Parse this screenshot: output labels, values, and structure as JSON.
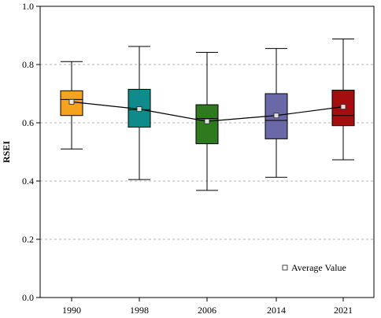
{
  "chart_data": {
    "type": "box",
    "title": "",
    "xlabel": "",
    "ylabel": "RSEI",
    "ylim": [
      0.0,
      1.0
    ],
    "yticks": [
      "0.0",
      "0.2",
      "0.4",
      "0.6",
      "0.8",
      "1.0"
    ],
    "grid": "horizontal-dashed",
    "categories": [
      "1990",
      "1998",
      "2006",
      "2014",
      "2021"
    ],
    "boxes": [
      {
        "category": "1990",
        "min": 0.51,
        "q1": 0.625,
        "median": 0.68,
        "q3": 0.71,
        "max": 0.81,
        "mean": 0.672,
        "color": "#F5A21F"
      },
      {
        "category": "1998",
        "min": 0.405,
        "q1": 0.585,
        "median": 0.645,
        "q3": 0.715,
        "max": 0.862,
        "mean": 0.647,
        "color": "#0F8B8C"
      },
      {
        "category": "2006",
        "min": 0.368,
        "q1": 0.528,
        "median": 0.615,
        "q3": 0.662,
        "max": 0.842,
        "mean": 0.605,
        "color": "#2F7A1E"
      },
      {
        "category": "2014",
        "min": 0.413,
        "q1": 0.545,
        "median": 0.608,
        "q3": 0.7,
        "max": 0.855,
        "mean": 0.625,
        "color": "#6B68A8"
      },
      {
        "category": "2021",
        "min": 0.473,
        "q1": 0.59,
        "median": 0.625,
        "q3": 0.712,
        "max": 0.888,
        "mean": 0.655,
        "color": "#A50E0E"
      }
    ],
    "mean_line": true,
    "legend": {
      "label": "Average Value",
      "position": "bottom-right"
    }
  }
}
